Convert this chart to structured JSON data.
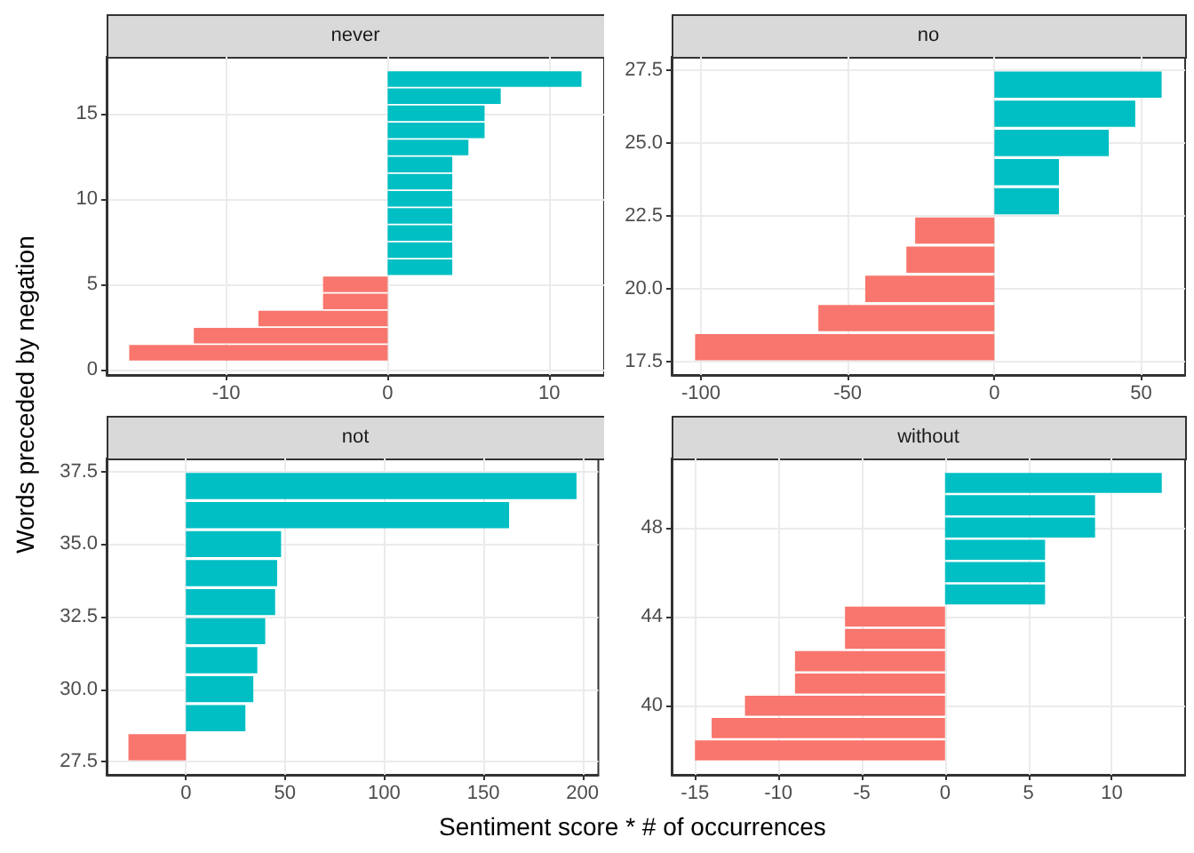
{
  "chart_data": [
    {
      "type": "bar",
      "orientation": "horizontal",
      "title": "never",
      "ylabel": "Words preceded by negation",
      "x": [
        1,
        2,
        3,
        4,
        5,
        6,
        7,
        8,
        9,
        10,
        11,
        12,
        13,
        14,
        15,
        16,
        17
      ],
      "values": [
        -16,
        -12,
        -8,
        -4,
        -4,
        4,
        4,
        4,
        4,
        4,
        4,
        4,
        5,
        6,
        6,
        7,
        12
      ],
      "colors": [
        "#f8766d",
        "#f8766d",
        "#f8766d",
        "#f8766d",
        "#f8766d",
        "#00bfc4",
        "#00bfc4",
        "#00bfc4",
        "#00bfc4",
        "#00bfc4",
        "#00bfc4",
        "#00bfc4",
        "#00bfc4",
        "#00bfc4",
        "#00bfc4",
        "#00bfc4",
        "#00bfc4"
      ],
      "xlim": [
        -17.4,
        13.4
      ],
      "xticks": [
        -10,
        0,
        10
      ],
      "ylim": [
        -0.3,
        18.3
      ],
      "yticks": [
        0,
        5,
        10,
        15
      ],
      "grid": true
    },
    {
      "type": "bar",
      "orientation": "horizontal",
      "title": "no",
      "x": [
        18,
        19,
        20,
        21,
        22,
        23,
        24,
        25,
        26,
        27
      ],
      "values": [
        -102,
        -60,
        -44,
        -30,
        -27,
        22,
        22,
        39,
        48,
        57
      ],
      "colors": [
        "#f8766d",
        "#f8766d",
        "#f8766d",
        "#f8766d",
        "#f8766d",
        "#00bfc4",
        "#00bfc4",
        "#00bfc4",
        "#00bfc4",
        "#00bfc4"
      ],
      "xlim": [
        -110,
        65
      ],
      "xticks": [
        -100,
        -50,
        0,
        50
      ],
      "ylim": [
        17.05,
        27.95
      ],
      "yticks": [
        17.5,
        {
          "value": 20,
          "label": "20.0"
        },
        22.5,
        {
          "value": 25,
          "label": "25.0"
        },
        27.5
      ],
      "grid": true
    },
    {
      "type": "bar",
      "orientation": "horizontal",
      "title": "not",
      "xlabel": "Sentiment score * # of occurrences",
      "x": [
        28,
        29,
        30,
        31,
        32,
        33,
        34,
        35,
        36,
        37
      ],
      "values": [
        -29,
        30,
        34,
        36,
        40,
        45,
        46,
        48,
        163,
        197
      ],
      "colors": [
        "#f8766d",
        "#00bfc4",
        "#00bfc4",
        "#00bfc4",
        "#00bfc4",
        "#00bfc4",
        "#00bfc4",
        "#00bfc4",
        "#00bfc4",
        "#00bfc4"
      ],
      "xlim": [
        -40,
        208
      ],
      "xticks": [
        0,
        50,
        100,
        150,
        200
      ],
      "ylim": [
        27.05,
        37.95
      ],
      "yticks": [
        27.5,
        {
          "value": 30,
          "label": "30.0"
        },
        32.5,
        {
          "value": 35,
          "label": "35.0"
        },
        37.5
      ],
      "grid": true
    },
    {
      "type": "bar",
      "orientation": "horizontal",
      "title": "without",
      "x": [
        38,
        39,
        40,
        41,
        42,
        43,
        44,
        45,
        46,
        47,
        48,
        49,
        50
      ],
      "values": [
        -15,
        -14,
        -12,
        -9,
        -9,
        -6,
        -6,
        6,
        6,
        6,
        9,
        9,
        13
      ],
      "colors": [
        "#f8766d",
        "#f8766d",
        "#f8766d",
        "#f8766d",
        "#f8766d",
        "#f8766d",
        "#f8766d",
        "#00bfc4",
        "#00bfc4",
        "#00bfc4",
        "#00bfc4",
        "#00bfc4",
        "#00bfc4"
      ],
      "xlim": [
        -16.4,
        14.4
      ],
      "xticks": [
        -15,
        -10,
        -5,
        0,
        5,
        10
      ],
      "ylim": [
        36.9,
        51.1
      ],
      "yticks": [
        40,
        44,
        48
      ],
      "grid": true
    }
  ]
}
